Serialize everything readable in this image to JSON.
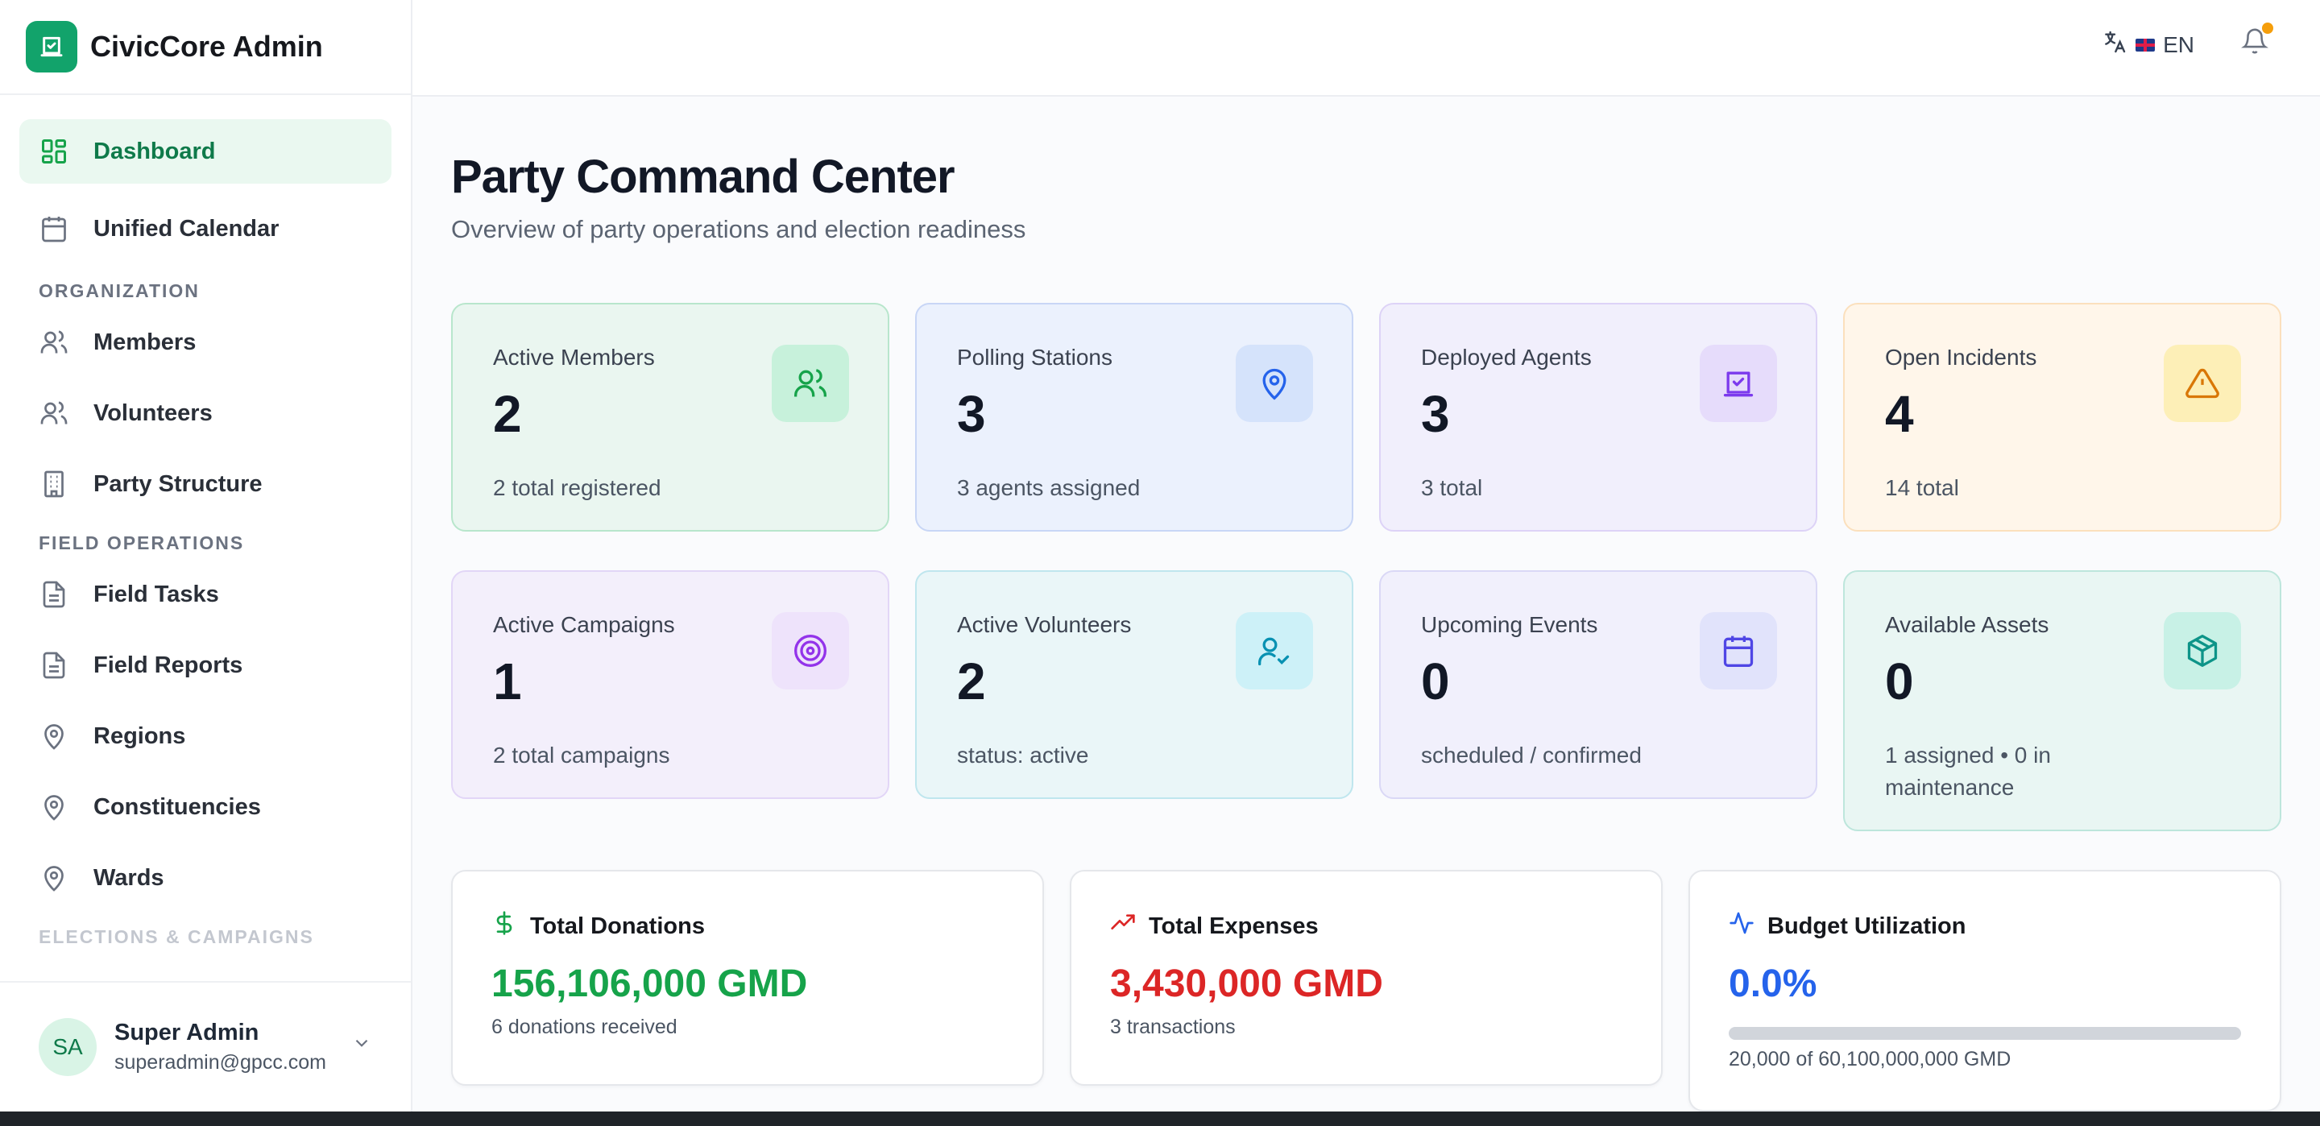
{
  "app": {
    "name": "CivicCore Admin"
  },
  "sidebar": {
    "items": [
      {
        "label": "Dashboard",
        "icon": "layout-grid-icon",
        "active": true
      },
      {
        "label": "Unified Calendar",
        "icon": "calendar-icon"
      }
    ],
    "sections": [
      {
        "title": "ORGANIZATION",
        "items": [
          {
            "label": "Members",
            "icon": "users-icon"
          },
          {
            "label": "Volunteers",
            "icon": "users-icon"
          },
          {
            "label": "Party Structure",
            "icon": "building-icon"
          }
        ]
      },
      {
        "title": "FIELD OPERATIONS",
        "items": [
          {
            "label": "Field Tasks",
            "icon": "file-text-icon"
          },
          {
            "label": "Field Reports",
            "icon": "file-text-icon"
          },
          {
            "label": "Regions",
            "icon": "map-pin-icon"
          },
          {
            "label": "Constituencies",
            "icon": "map-pin-icon"
          },
          {
            "label": "Wards",
            "icon": "map-pin-icon"
          }
        ]
      },
      {
        "title": "ELECTIONS & CAMPAIGNS"
      }
    ]
  },
  "user": {
    "initials": "SA",
    "name": "Super Admin",
    "email": "superadmin@gpcc.com"
  },
  "topbar": {
    "language": "EN",
    "notification_dot_color": "#f59e0b"
  },
  "page": {
    "title": "Party Command Center",
    "subtitle": "Overview of party operations and election readiness"
  },
  "stats": [
    {
      "label": "Active Members",
      "value": "2",
      "sub": "2 total registered",
      "icon": "users-icon",
      "theme": "green",
      "accent": "#16a34a"
    },
    {
      "label": "Polling Stations",
      "value": "3",
      "sub": "3 agents assigned",
      "icon": "map-pin-icon",
      "theme": "blue",
      "accent": "#2563eb"
    },
    {
      "label": "Deployed Agents",
      "value": "3",
      "sub": "3 total",
      "icon": "vote-box-icon",
      "theme": "violet",
      "accent": "#7c3aed"
    },
    {
      "label": "Open Incidents",
      "value": "4",
      "sub": "14 total",
      "icon": "warning-triangle-icon",
      "theme": "amber",
      "accent": "#d97706"
    },
    {
      "label": "Active Campaigns",
      "value": "1",
      "sub": "2 total campaigns",
      "icon": "target-icon",
      "theme": "purple",
      "accent": "#9333ea"
    },
    {
      "label": "Active Volunteers",
      "value": "2",
      "sub": "status: active",
      "icon": "user-check-icon",
      "theme": "cyan",
      "accent": "#0891b2"
    },
    {
      "label": "Upcoming Events",
      "value": "0",
      "sub": "scheduled / confirmed",
      "icon": "calendar-icon",
      "theme": "indigo",
      "accent": "#4f46e5"
    },
    {
      "label": "Available Assets",
      "value": "0",
      "sub": "1 assigned • 0 in maintenance",
      "icon": "package-icon",
      "theme": "teal",
      "accent": "#0d9488"
    }
  ],
  "finance": {
    "donations": {
      "title": "Total Donations",
      "value": "156,106,000 GMD",
      "sub": "6 donations received",
      "icon": "dollar-icon",
      "color": "#16a34a"
    },
    "expenses": {
      "title": "Total Expenses",
      "value": "3,430,000 GMD",
      "sub": "3 transactions",
      "icon": "trending-up-icon",
      "color": "#dc2626"
    },
    "budget": {
      "title": "Budget Utilization",
      "value": "0.0%",
      "progress": 0.0,
      "sub": "20,000 of 60,100,000,000 GMD",
      "icon": "activity-icon",
      "color": "#2563eb"
    }
  }
}
